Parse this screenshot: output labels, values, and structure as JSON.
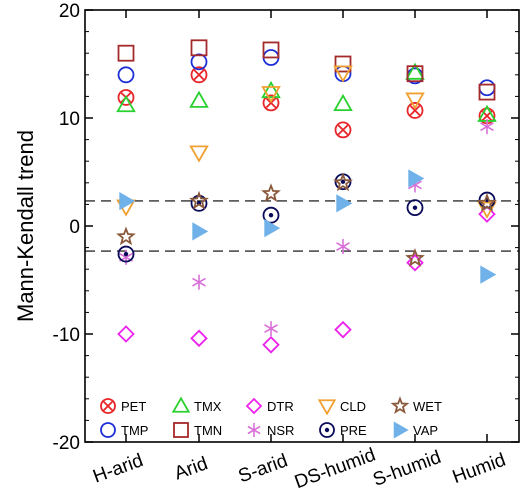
{
  "chart_data": {
    "type": "scatter",
    "ylabel": "Mann-Kendall trend",
    "ylim": [
      -20,
      20
    ],
    "yticks": [
      -20,
      -10,
      0,
      10,
      20
    ],
    "categories": [
      "H-arid",
      "Arid",
      "S-arid",
      "DS-humid",
      "S-humid",
      "Humid"
    ],
    "reference_lines": [
      2.32,
      -2.32
    ],
    "grid": false,
    "legend_position": "bottom-inside",
    "series": [
      {
        "name": "PET",
        "marker": "circle-x",
        "color": "#e8262a",
        "values": [
          11.9,
          14.0,
          11.4,
          8.9,
          10.7,
          10.2
        ]
      },
      {
        "name": "TMP",
        "marker": "circle",
        "color": "#1c2fd6",
        "values": [
          14.0,
          15.2,
          15.6,
          14.1,
          13.9,
          12.8
        ]
      },
      {
        "name": "TMX",
        "marker": "triangle-up",
        "color": "#29d12f",
        "values": [
          11.2,
          11.6,
          12.5,
          11.3,
          14.2,
          10.3
        ]
      },
      {
        "name": "TMN",
        "marker": "square",
        "color": "#a52a2a",
        "values": [
          16.0,
          16.5,
          16.3,
          15.0,
          14.1,
          12.4
        ]
      },
      {
        "name": "DTR",
        "marker": "diamond",
        "color": "#ee22ee",
        "values": [
          -10.0,
          -10.4,
          -11.0,
          -9.6,
          -3.4,
          1.1
        ]
      },
      {
        "name": "NSR",
        "marker": "asterisk",
        "color": "#d86fd8",
        "values": [
          -2.9,
          -5.2,
          -9.5,
          -1.9,
          3.8,
          9.2
        ]
      },
      {
        "name": "CLD",
        "marker": "triangle-down",
        "color": "#f0a030",
        "values": [
          1.8,
          6.8,
          12.3,
          14.2,
          11.7,
          1.6
        ]
      },
      {
        "name": "PRE",
        "marker": "circle-dot",
        "color": "#0a0a5a",
        "values": [
          -2.6,
          2.1,
          1.0,
          4.1,
          1.7,
          2.4
        ]
      },
      {
        "name": "WET",
        "marker": "star",
        "color": "#8b5a3c",
        "values": [
          -1.0,
          2.3,
          3.0,
          4.0,
          -3.0,
          2.1
        ]
      },
      {
        "name": "VAP",
        "marker": "triangle-right",
        "color": "#6fb1e8",
        "values": [
          2.3,
          -0.5,
          -0.2,
          2.1,
          4.4,
          -4.5
        ]
      }
    ]
  }
}
